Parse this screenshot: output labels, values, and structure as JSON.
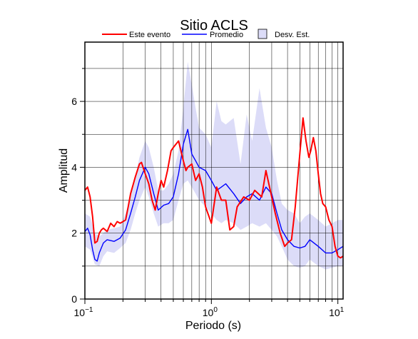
{
  "chart_data": {
    "type": "line",
    "title": "Sitio ACLS",
    "xlabel": "Periodo (s)",
    "ylabel": "Amplitud",
    "xscale": "log",
    "xlim": [
      0.1,
      11
    ],
    "ylim": [
      0,
      7.8
    ],
    "yticks": [
      0,
      2,
      4,
      6
    ],
    "xtick_labels": [
      {
        "value": 0.1,
        "base": "10",
        "exp": "−1"
      },
      {
        "value": 1,
        "base": "10",
        "exp": "0"
      },
      {
        "value": 10,
        "base": "10",
        "exp": "1"
      }
    ],
    "grid": true,
    "legend_position": "top",
    "colors": {
      "este_evento": "#ff0000",
      "promedio": "#0000ff",
      "desv_fill": "#dcdcf8",
      "desv_edge": "#000000"
    },
    "series": [
      {
        "name": "Este evento",
        "x": [
          0.1,
          0.105,
          0.11,
          0.115,
          0.12,
          0.125,
          0.13,
          0.135,
          0.14,
          0.15,
          0.16,
          0.17,
          0.18,
          0.19,
          0.2,
          0.21,
          0.22,
          0.23,
          0.25,
          0.27,
          0.28,
          0.3,
          0.32,
          0.34,
          0.36,
          0.38,
          0.4,
          0.42,
          0.45,
          0.48,
          0.5,
          0.55,
          0.6,
          0.63,
          0.65,
          0.7,
          0.75,
          0.8,
          0.85,
          0.9,
          1.0,
          1.1,
          1.2,
          1.3,
          1.4,
          1.5,
          1.6,
          1.8,
          2.0,
          2.2,
          2.5,
          2.7,
          3.0,
          3.2,
          3.5,
          3.8,
          4.0,
          4.3,
          4.6,
          5.0,
          5.3,
          5.6,
          5.9,
          6.1,
          6.4,
          6.7,
          7.0,
          7.3,
          7.6,
          8.0,
          8.5,
          9.0,
          9.5,
          10.0,
          10.5,
          11.0
        ],
        "y": [
          3.3,
          3.4,
          3.1,
          2.5,
          1.7,
          1.75,
          2.0,
          2.1,
          2.15,
          2.05,
          2.3,
          2.2,
          2.35,
          2.3,
          2.35,
          2.4,
          2.8,
          3.2,
          3.7,
          4.1,
          4.15,
          3.8,
          3.5,
          3.0,
          2.7,
          3.2,
          3.6,
          3.4,
          3.9,
          4.5,
          4.6,
          4.8,
          4.2,
          3.9,
          4.0,
          4.1,
          3.6,
          3.8,
          3.4,
          2.8,
          2.3,
          3.4,
          3.0,
          3.0,
          2.1,
          2.2,
          2.8,
          3.1,
          3.0,
          3.3,
          3.1,
          3.9,
          3.1,
          2.6,
          2.0,
          1.6,
          1.7,
          1.8,
          2.8,
          4.4,
          5.5,
          4.8,
          4.3,
          4.5,
          4.9,
          4.5,
          3.8,
          3.2,
          2.9,
          2.8,
          2.4,
          2.2,
          1.6,
          1.3,
          1.25,
          1.3
        ]
      },
      {
        "name": "Promedio",
        "x": [
          0.1,
          0.105,
          0.11,
          0.115,
          0.12,
          0.125,
          0.13,
          0.14,
          0.15,
          0.17,
          0.19,
          0.21,
          0.23,
          0.25,
          0.27,
          0.3,
          0.32,
          0.35,
          0.38,
          0.42,
          0.46,
          0.5,
          0.55,
          0.6,
          0.65,
          0.7,
          0.75,
          0.8,
          0.9,
          1.0,
          1.1,
          1.2,
          1.3,
          1.5,
          1.7,
          1.9,
          2.1,
          2.4,
          2.7,
          3.0,
          3.3,
          3.6,
          4.0,
          4.5,
          5.0,
          5.5,
          6.0,
          7.0,
          8.0,
          9.0,
          10.0,
          11.0
        ],
        "y": [
          2.05,
          2.15,
          1.95,
          1.5,
          1.2,
          1.15,
          1.4,
          1.7,
          1.8,
          1.75,
          1.85,
          2.1,
          2.6,
          3.1,
          3.6,
          4.0,
          3.8,
          3.2,
          2.7,
          2.85,
          2.9,
          3.1,
          3.8,
          4.7,
          5.15,
          4.4,
          4.2,
          4.0,
          3.9,
          3.6,
          3.3,
          3.4,
          3.5,
          3.2,
          2.9,
          3.1,
          3.2,
          3.0,
          3.4,
          3.2,
          2.6,
          2.1,
          1.8,
          1.6,
          1.55,
          1.6,
          1.8,
          1.6,
          1.4,
          1.4,
          1.5,
          1.6
        ]
      },
      {
        "name": "Desv. Est.",
        "x": [
          0.1,
          0.11,
          0.12,
          0.13,
          0.14,
          0.15,
          0.17,
          0.19,
          0.21,
          0.23,
          0.25,
          0.27,
          0.3,
          0.32,
          0.35,
          0.38,
          0.42,
          0.46,
          0.5,
          0.55,
          0.6,
          0.65,
          0.7,
          0.75,
          0.8,
          0.9,
          1.0,
          1.1,
          1.2,
          1.3,
          1.5,
          1.7,
          1.9,
          2.1,
          2.4,
          2.7,
          3.0,
          3.3,
          3.6,
          4.0,
          4.5,
          5.0,
          5.5,
          6.0,
          7.0,
          8.0,
          9.0,
          10.0,
          11.0
        ],
        "lower": [
          1.6,
          1.5,
          1.05,
          1.0,
          1.3,
          1.45,
          1.4,
          1.55,
          1.7,
          2.1,
          2.6,
          3.0,
          3.4,
          3.1,
          2.6,
          2.2,
          2.3,
          2.3,
          2.4,
          3.0,
          3.5,
          3.6,
          3.4,
          3.2,
          3.0,
          2.8,
          2.6,
          2.4,
          2.3,
          2.4,
          2.3,
          2.1,
          2.2,
          2.3,
          2.2,
          2.3,
          2.1,
          1.9,
          1.6,
          1.2,
          1.0,
          0.95,
          1.0,
          1.2,
          1.0,
          0.9,
          0.95,
          1.0,
          1.0
        ],
        "upper": [
          2.6,
          2.5,
          2.0,
          1.9,
          2.0,
          2.1,
          2.15,
          2.2,
          2.6,
          3.1,
          3.7,
          4.3,
          4.8,
          4.6,
          4.0,
          3.3,
          3.3,
          3.5,
          3.8,
          4.5,
          5.8,
          7.2,
          6.5,
          5.8,
          5.2,
          5.0,
          4.6,
          6.0,
          5.4,
          5.3,
          5.5,
          4.1,
          5.6,
          4.8,
          6.4,
          5.2,
          4.6,
          3.6,
          2.9,
          2.7,
          2.6,
          2.3,
          2.5,
          2.6,
          2.4,
          2.2,
          2.3,
          2.4,
          2.4
        ]
      }
    ]
  }
}
